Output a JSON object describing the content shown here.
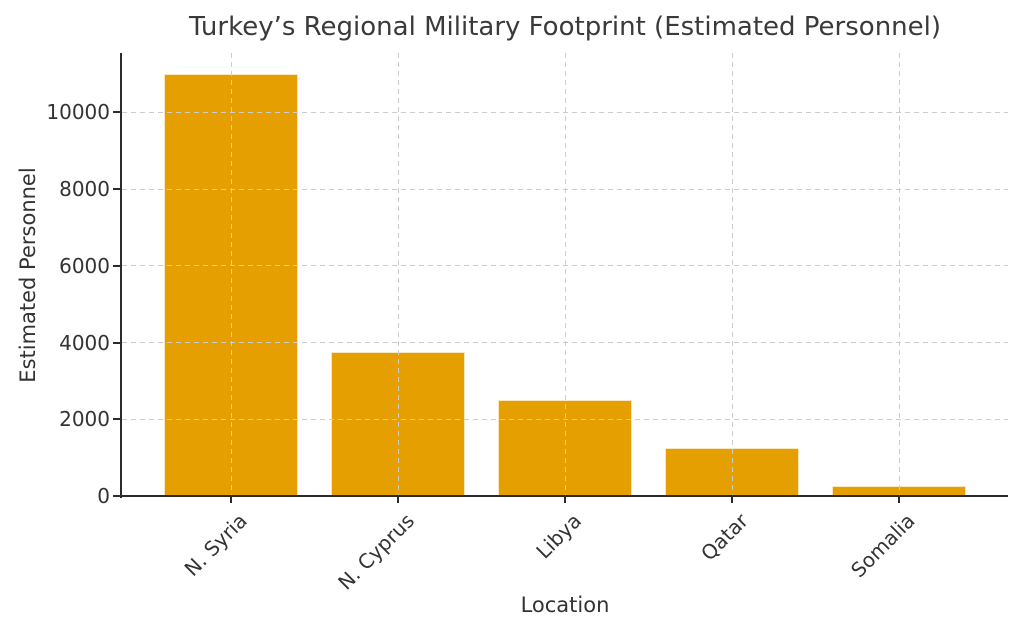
{
  "chart_data": {
    "type": "bar",
    "title": "Turkey’s Regional Military Footprint (Estimated Personnel)",
    "categories": [
      "N. Syria",
      "N. Cyprus",
      "Libya",
      "Qatar",
      "Somalia"
    ],
    "values": [
      11000,
      3750,
      2500,
      1250,
      250
    ],
    "xlabel": "Location",
    "ylabel": "Estimated Personnel",
    "ylim": [
      0,
      11550
    ],
    "yticks": [
      0,
      2000,
      4000,
      6000,
      8000,
      10000
    ],
    "x_tick_rotation": 45,
    "grid": "dashed, horizontal and vertical, drawn over bars",
    "legend_position": "none",
    "bar_color": "#E69F00",
    "background_color": "#ffffff",
    "grid_color": "#cccccc",
    "text_color": "#333333",
    "spine_color": "#2b2b2b"
  }
}
